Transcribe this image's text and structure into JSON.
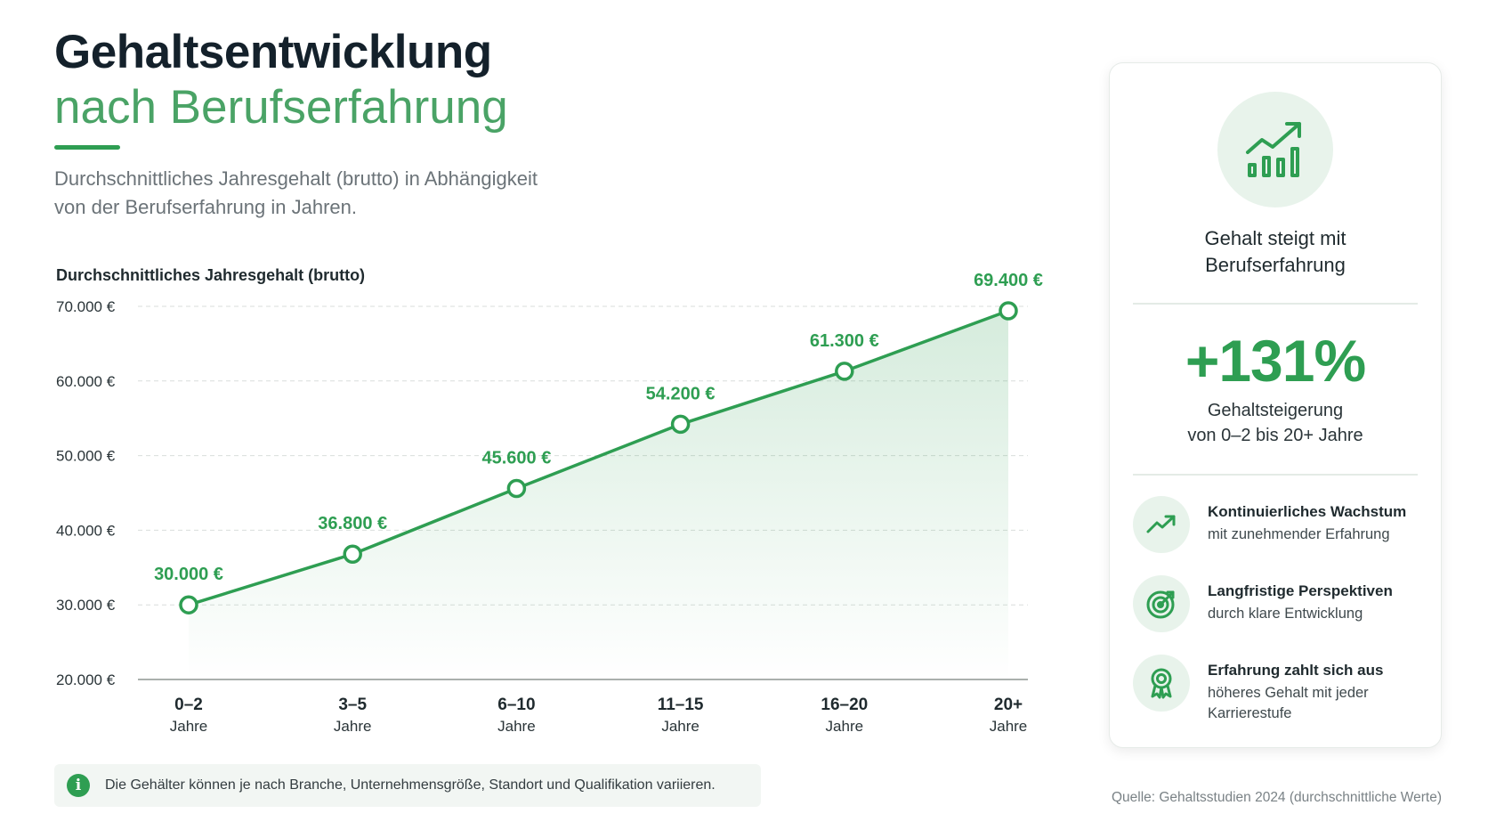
{
  "header": {
    "title_line1": "Gehaltsentwicklung",
    "title_line2": "nach Berufserfahrung",
    "subtitle_line1": "Durchschnittliches Jahresgehalt (brutto) in Abhängigkeit",
    "subtitle_line2": "von der Berufserfahrung in Jahren."
  },
  "colors": {
    "accent": "#2e9e52",
    "accent_light": "#4aa366",
    "title": "#14212b",
    "grid": "#d9dedb"
  },
  "chart_data": {
    "type": "line",
    "ylabel": "Durchschnittliches Jahresgehalt (brutto)",
    "categories": [
      "0–2",
      "3–5",
      "6–10",
      "11–15",
      "16–20",
      "20+"
    ],
    "category_sublabel": "Jahre",
    "series": [
      {
        "values": [
          30000,
          36800,
          45600,
          54200,
          61300,
          69400
        ]
      }
    ],
    "data_labels": [
      "30.000 €",
      "36.800 €",
      "45.600 €",
      "54.200 €",
      "61.300 €",
      "69.400 €"
    ],
    "ylim": [
      20000,
      70000
    ],
    "yticks": [
      20000,
      30000,
      40000,
      50000,
      60000,
      70000
    ],
    "ytick_labels": [
      "20.000 €",
      "30.000 €",
      "40.000 €",
      "50.000 €",
      "60.000 €",
      "70.000 €"
    ],
    "grid": true,
    "area_fill": true
  },
  "note": {
    "icon": "info-icon",
    "icon_glyph": "i",
    "text": "Die Gehälter können je nach Branche, Unternehmensgröße, Standort und Qualifikation variieren."
  },
  "source": "Quelle: Gehaltsstudien 2024 (durchschnittliche Werte)",
  "card": {
    "icon": "growth-chart-icon",
    "heading_line1": "Gehalt steigt mit",
    "heading_line2": "Berufserfahrung",
    "big_value": "+131%",
    "big_label_line1": "Gehaltsteigerung",
    "big_label_line2": "von 0–2 bis 20+ Jahre",
    "features": [
      {
        "icon": "trend-up-icon",
        "title": "Kontinuierliches Wachstum",
        "sub": "mit zunehmender Erfahrung"
      },
      {
        "icon": "target-icon",
        "title": "Langfristige Perspektiven",
        "sub": "durch klare Entwicklung"
      },
      {
        "icon": "award-icon",
        "title": "Erfahrung zahlt sich aus",
        "sub": "höheres Gehalt mit jeder Karrierestufe"
      }
    ]
  }
}
